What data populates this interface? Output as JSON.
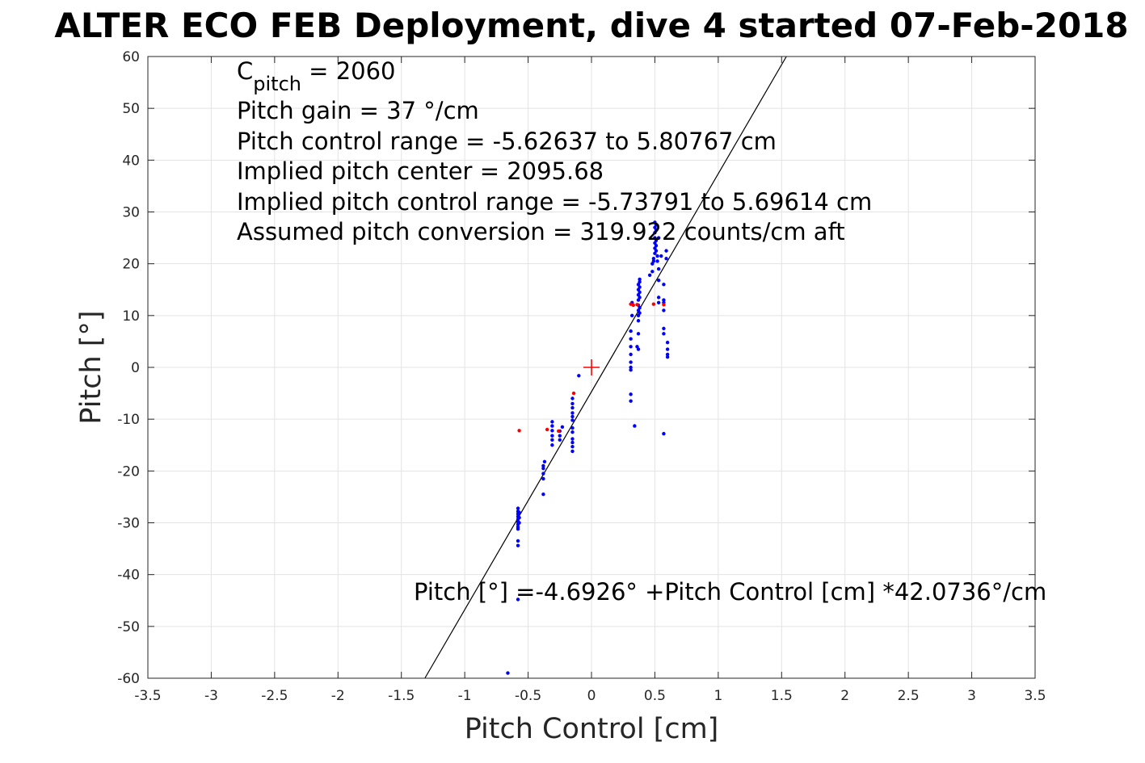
{
  "chart_data": {
    "type": "scatter",
    "title": "ALTER ECO FEB Deployment, dive 4 started 07-Feb-2018",
    "xlabel": "Pitch Control [cm]",
    "ylabel": "Pitch [°]",
    "xlim": [
      -3.5,
      3.5
    ],
    "ylim": [
      -60,
      60
    ],
    "xticks": [
      -3.5,
      -3,
      -2.5,
      -2,
      -1.5,
      -1,
      -0.5,
      0,
      0.5,
      1,
      1.5,
      2,
      2.5,
      3,
      3.5
    ],
    "yticks": [
      -60,
      -50,
      -40,
      -30,
      -20,
      -10,
      0,
      10,
      20,
      30,
      40,
      50,
      60
    ],
    "grid": true,
    "colors": {
      "points_used": "#0000ff",
      "points_excluded": "#ff0000",
      "fit_line": "#000000",
      "center_marker": "#ff0000"
    },
    "fit": {
      "intercept": -4.6926,
      "slope": 42.0736
    },
    "center_marker": {
      "x": 0,
      "y": 0
    },
    "annotations": {
      "cpitch_base": "C",
      "cpitch_sub": "pitch",
      "cpitch_value": " = 2060",
      "pitch_gain": "Pitch gain = 37 °/cm",
      "control_range": "Pitch control range = -5.62637 to 5.80767 cm",
      "implied_center": "Implied pitch center = 2095.68",
      "implied_range": "Implied pitch control range = -5.73791 to 5.69614 cm",
      "conversion": "Assumed pitch conversion = 319.922 counts/cm aft",
      "fit_equation": "Pitch [°] =-4.6926° +Pitch Control [cm] *42.0736°/cm"
    },
    "series": [
      {
        "color": "blue",
        "points": [
          [
            -0.58,
            -27.2
          ],
          [
            -0.58,
            -27.8
          ],
          [
            -0.58,
            -28.3
          ],
          [
            -0.58,
            -28.8
          ],
          [
            -0.58,
            -29.3
          ],
          [
            -0.58,
            -29.8
          ],
          [
            -0.58,
            -30.3
          ],
          [
            -0.58,
            -30.8
          ],
          [
            -0.58,
            -31.2
          ],
          [
            -0.58,
            -33.5
          ],
          [
            -0.58,
            -34.4
          ],
          [
            -0.57,
            -28.0
          ],
          [
            -0.57,
            -29.0
          ],
          [
            -0.57,
            -30.0
          ],
          [
            -0.58,
            -44.8
          ],
          [
            -0.66,
            -59.0
          ],
          [
            -0.38,
            -19.0
          ],
          [
            -0.38,
            -19.5
          ],
          [
            -0.38,
            -20.5
          ],
          [
            -0.38,
            -21.5
          ],
          [
            -0.37,
            -18.2
          ],
          [
            -0.38,
            -24.5
          ],
          [
            -0.31,
            -10.5
          ],
          [
            -0.31,
            -11.3
          ],
          [
            -0.31,
            -12.2
          ],
          [
            -0.31,
            -13.2
          ],
          [
            -0.31,
            -14.0
          ],
          [
            -0.31,
            -15.0
          ],
          [
            -0.25,
            -12.3
          ],
          [
            -0.25,
            -13.2
          ],
          [
            -0.25,
            -14.0
          ],
          [
            -0.23,
            -11.5
          ],
          [
            -0.15,
            -6.0
          ],
          [
            -0.15,
            -7.0
          ],
          [
            -0.15,
            -7.8
          ],
          [
            -0.15,
            -8.8
          ],
          [
            -0.15,
            -9.5
          ],
          [
            -0.15,
            -10.2
          ],
          [
            -0.15,
            -11.7
          ],
          [
            -0.15,
            -12.5
          ],
          [
            -0.15,
            -13.8
          ],
          [
            -0.15,
            -14.5
          ],
          [
            -0.15,
            -15.3
          ],
          [
            -0.15,
            -16.2
          ],
          [
            -0.1,
            -1.6
          ],
          [
            0.31,
            7.0
          ],
          [
            0.31,
            5.5
          ],
          [
            0.31,
            4.0
          ],
          [
            0.31,
            2.5
          ],
          [
            0.31,
            1.0
          ],
          [
            0.31,
            0.0
          ],
          [
            0.31,
            -0.5
          ],
          [
            0.31,
            -5.2
          ],
          [
            0.31,
            -6.5
          ],
          [
            0.34,
            -11.3
          ],
          [
            0.32,
            10.0
          ],
          [
            0.32,
            12.5
          ],
          [
            0.37,
            16.0
          ],
          [
            0.37,
            15.0
          ],
          [
            0.37,
            14.0
          ],
          [
            0.37,
            13.0
          ],
          [
            0.37,
            12.0
          ],
          [
            0.37,
            11.0
          ],
          [
            0.37,
            10.0
          ],
          [
            0.37,
            9.0
          ],
          [
            0.37,
            6.5
          ],
          [
            0.36,
            4.0
          ],
          [
            0.37,
            3.5
          ],
          [
            0.38,
            17.0
          ],
          [
            0.38,
            16.5
          ],
          [
            0.38,
            15.5
          ],
          [
            0.38,
            14.5
          ],
          [
            0.38,
            13.5
          ],
          [
            0.38,
            11.5
          ],
          [
            0.38,
            10.5
          ],
          [
            0.46,
            17.8
          ],
          [
            0.48,
            18.5
          ],
          [
            0.48,
            20.0
          ],
          [
            0.49,
            20.5
          ],
          [
            0.49,
            21.0
          ],
          [
            0.5,
            22.0
          ],
          [
            0.5,
            23.0
          ],
          [
            0.5,
            24.0
          ],
          [
            0.5,
            25.0
          ],
          [
            0.5,
            26.0
          ],
          [
            0.5,
            27.0
          ],
          [
            0.5,
            28.0
          ],
          [
            0.51,
            27.5
          ],
          [
            0.51,
            26.5
          ],
          [
            0.51,
            24.5
          ],
          [
            0.51,
            23.5
          ],
          [
            0.51,
            22.5
          ],
          [
            0.52,
            21.5
          ],
          [
            0.52,
            20.5
          ],
          [
            0.53,
            25.0
          ],
          [
            0.53,
            19.0
          ],
          [
            0.53,
            16.8
          ],
          [
            0.53,
            13.5
          ],
          [
            0.53,
            12.5
          ],
          [
            0.55,
            21.5
          ],
          [
            0.57,
            16.0
          ],
          [
            0.57,
            13.0
          ],
          [
            0.57,
            12.5
          ],
          [
            0.57,
            11.0
          ],
          [
            0.57,
            7.5
          ],
          [
            0.57,
            6.5
          ],
          [
            0.57,
            -12.8
          ],
          [
            0.59,
            22.5
          ],
          [
            0.59,
            21.0
          ],
          [
            0.6,
            4.8
          ],
          [
            0.6,
            3.5
          ],
          [
            0.6,
            2.5
          ],
          [
            0.6,
            2.0
          ]
        ]
      },
      {
        "color": "red",
        "points": [
          [
            -0.57,
            -12.2
          ],
          [
            -0.35,
            -12.0
          ],
          [
            -0.26,
            -12.3
          ],
          [
            -0.14,
            -5.0
          ],
          [
            0.31,
            12.2
          ],
          [
            0.33,
            12.0
          ],
          [
            0.36,
            12.1
          ],
          [
            0.49,
            12.2
          ],
          [
            0.57,
            12.1
          ]
        ]
      }
    ]
  }
}
